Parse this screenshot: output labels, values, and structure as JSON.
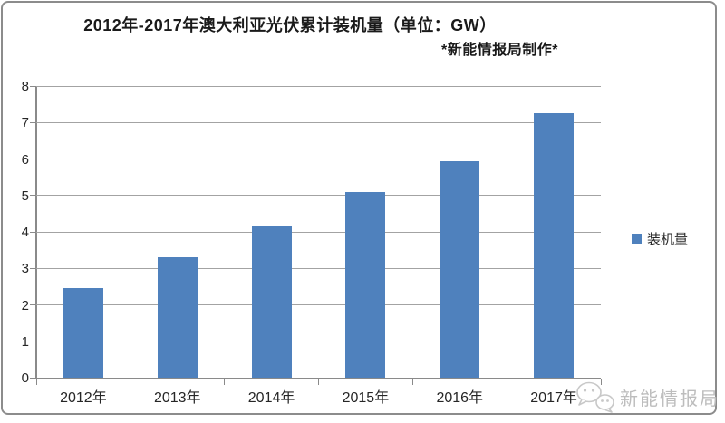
{
  "chart_data": {
    "type": "bar",
    "title": "2012年-2017年澳大利亚光伏累计装机量（单位：GW）",
    "subtitle": "*新能情报局制作*",
    "categories": [
      "2012年",
      "2013年",
      "2014年",
      "2015年",
      "2016年",
      "2017年"
    ],
    "series": [
      {
        "name": "装机量",
        "values": [
          2.45,
          3.3,
          4.15,
          5.1,
          5.95,
          7.25
        ]
      }
    ],
    "xlabel": "",
    "ylabel": "",
    "ylim": [
      0,
      8
    ],
    "ytick_step": 1,
    "yticks": [
      0,
      1,
      2,
      3,
      4,
      5,
      6,
      7,
      8
    ],
    "grid": true,
    "legend_position": "right-middle",
    "bar_color": "#4f81bd",
    "gridline_color": "#a3a3a3",
    "axis_color": "#8a8a8a"
  },
  "legend": {
    "label": "装机量"
  },
  "watermark": {
    "text": "新能情报局",
    "icon": "wechat-chat-bubbles-icon"
  }
}
